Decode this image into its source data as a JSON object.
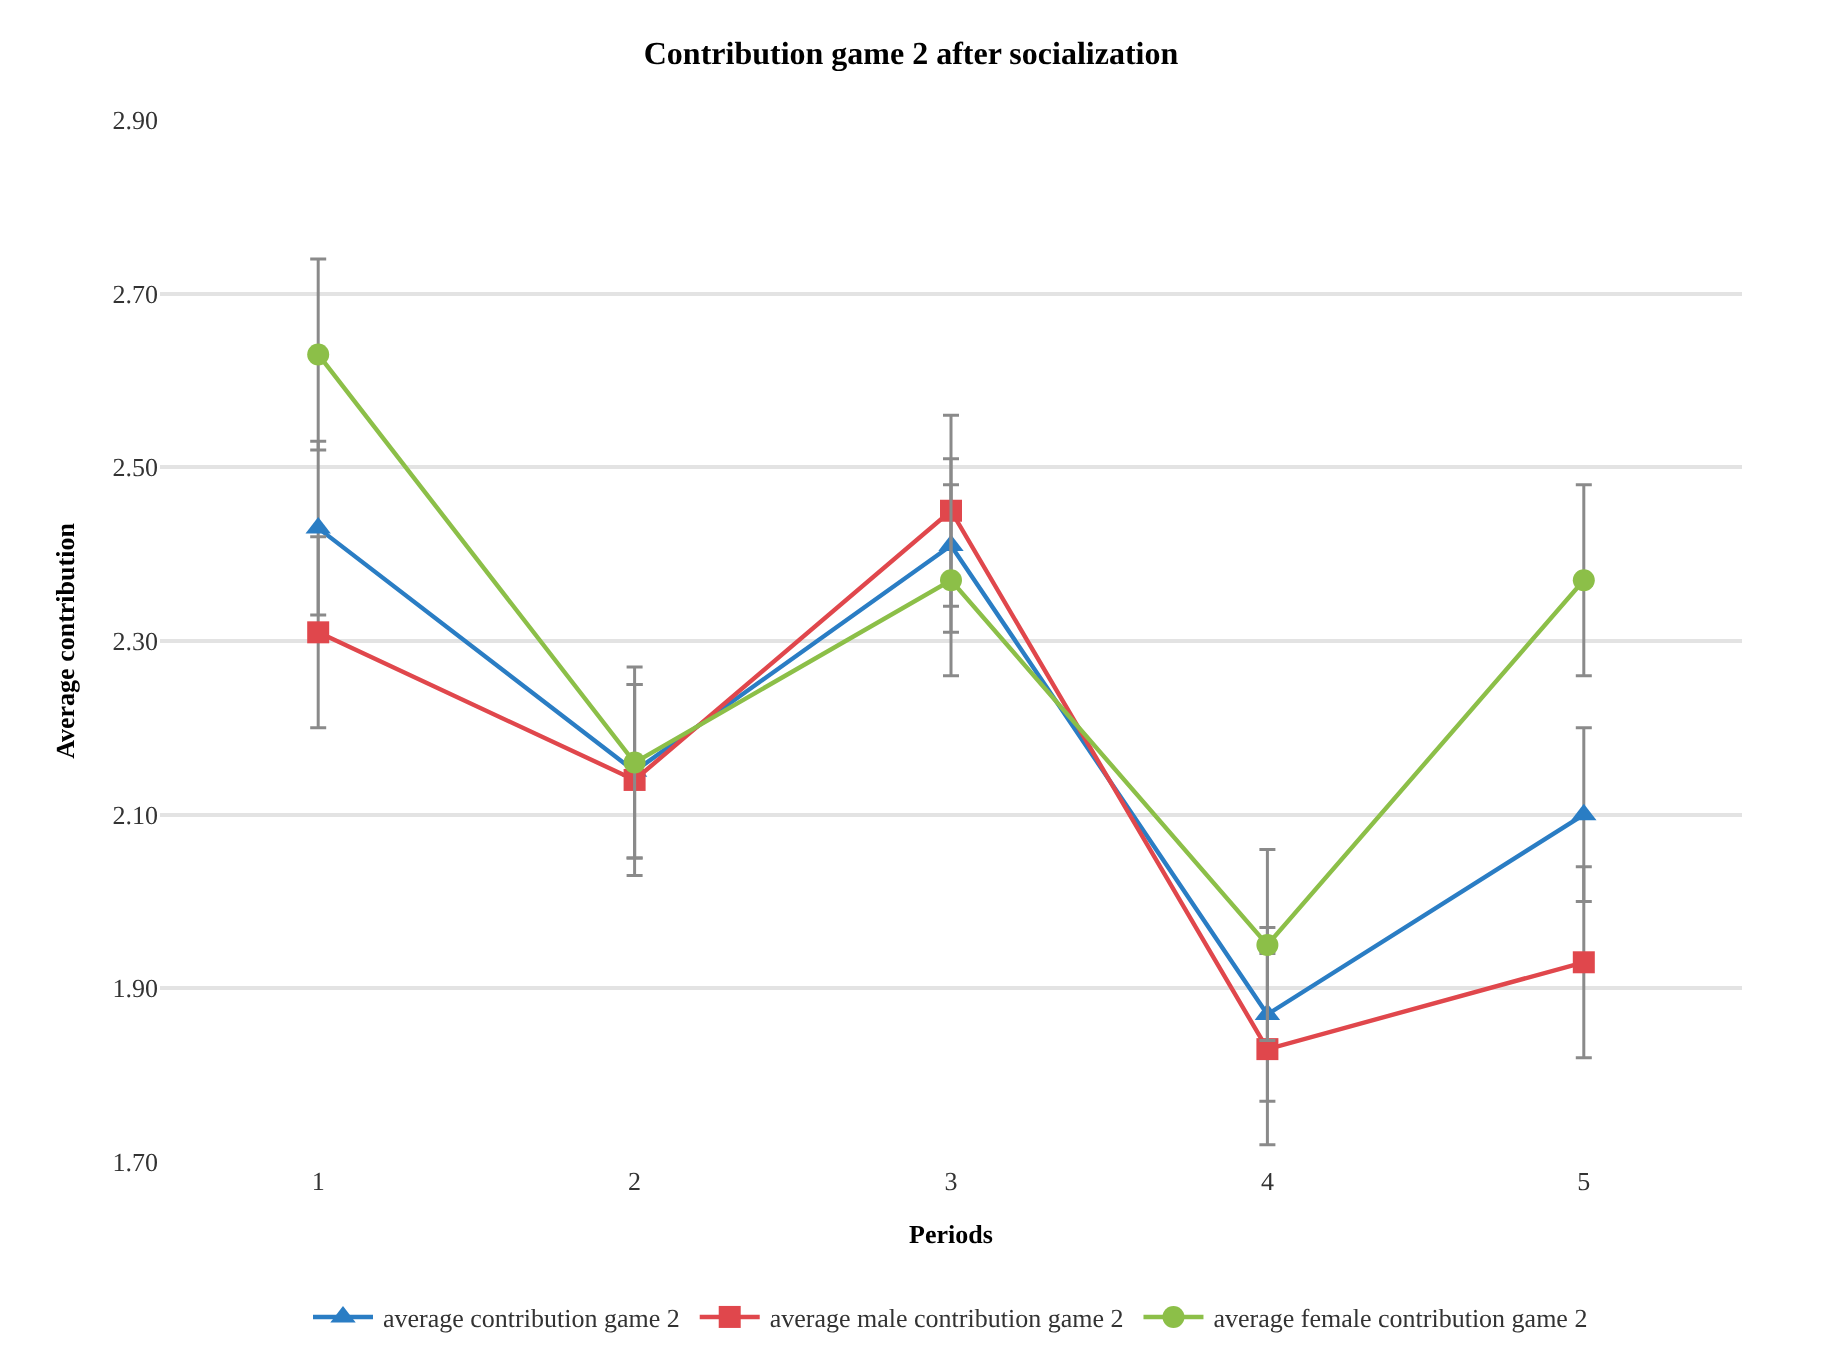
{
  "chart_data": {
    "type": "line",
    "title": "Contribution game 2 after socialization",
    "xlabel": "Periods",
    "ylabel": "Average contribution",
    "categories": [
      "1",
      "2",
      "3",
      "4",
      "5"
    ],
    "series": [
      {
        "name": "average contribution game 2",
        "color": "#2a7dc4",
        "marker": "triangle",
        "values": [
          2.43,
          2.15,
          2.41,
          1.87,
          2.1
        ],
        "errors": [
          0.1,
          0.1,
          0.1,
          0.1,
          0.1
        ]
      },
      {
        "name": "average male contribution game 2",
        "color": "#e0474c",
        "marker": "square",
        "values": [
          2.31,
          2.14,
          2.45,
          1.83,
          1.93
        ],
        "errors": [
          0.11,
          0.11,
          0.11,
          0.11,
          0.11
        ]
      },
      {
        "name": "average female contribution game 2",
        "color": "#8cbf48",
        "marker": "circle",
        "values": [
          2.63,
          2.16,
          2.37,
          1.95,
          2.37
        ],
        "errors": [
          0.11,
          0.11,
          0.11,
          0.11,
          0.11
        ]
      }
    ],
    "ylim": [
      1.7,
      2.9
    ],
    "yticks": [
      {
        "value": 1.7,
        "label": "1.70"
      },
      {
        "value": 1.9,
        "label": "1.90"
      },
      {
        "value": 2.1,
        "label": "2.10"
      },
      {
        "value": 2.3,
        "label": "2.30"
      },
      {
        "value": 2.5,
        "label": "2.50"
      },
      {
        "value": 2.7,
        "label": "2.70"
      },
      {
        "value": 2.9,
        "label": "2.90"
      }
    ],
    "grid": "y",
    "legend": "bottom",
    "line_style": "solid"
  }
}
